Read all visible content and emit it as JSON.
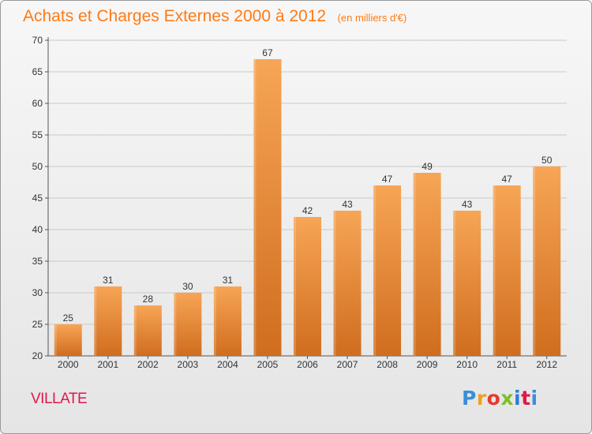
{
  "chart_data": {
    "type": "bar",
    "title": "Achats et Charges Externes 2000 à 2012",
    "subtitle": "(en milliers d'€)",
    "categories": [
      "2000",
      "2001",
      "2002",
      "2003",
      "2004",
      "2005",
      "2006",
      "2007",
      "2008",
      "2009",
      "2010",
      "2011",
      "2012"
    ],
    "values": [
      25,
      31,
      28,
      30,
      31,
      67,
      42,
      43,
      47,
      49,
      43,
      47,
      50
    ],
    "ylim": [
      20,
      70
    ],
    "yticks": [
      20,
      25,
      30,
      35,
      40,
      45,
      50,
      55,
      60,
      65,
      70
    ],
    "xlabel": "",
    "ylabel": "",
    "grid": true,
    "legend": "none",
    "bar_color": "#f0902f",
    "data_labels": true
  },
  "place": "VILLATE",
  "logo": "Proxiti",
  "colors": {
    "title": "#ff7a14",
    "place": "#e0184a",
    "bar_light": "#f7a556",
    "bar_dark": "#d06d1e"
  }
}
